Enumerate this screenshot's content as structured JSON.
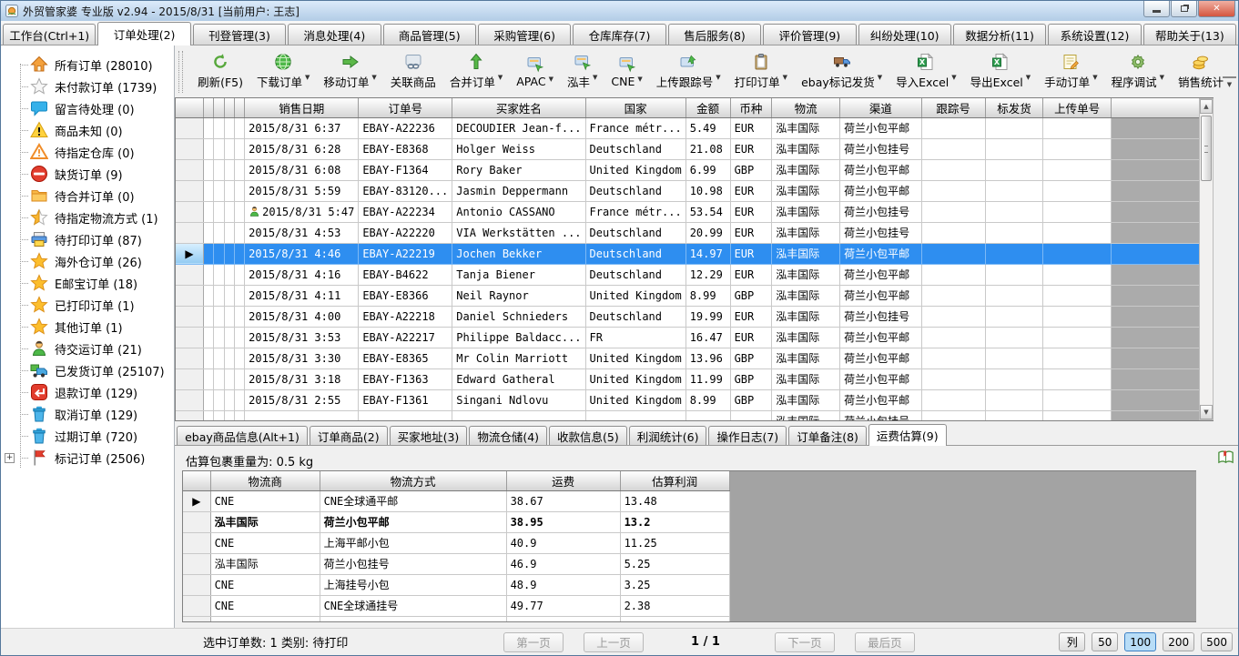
{
  "window": {
    "title": "外贸管家婆 专业版 v2.94 - 2015/8/31 [当前用户: 王志]",
    "app_icon": "app-icon",
    "controls": {
      "minimize": "minimize-button",
      "maximize": "maximize-button",
      "close": "close-button"
    }
  },
  "menu_tabs": [
    {
      "label": "工作台(Ctrl+1)",
      "active": false
    },
    {
      "label": "订单处理(2)",
      "active": true
    },
    {
      "label": "刊登管理(3)",
      "active": false
    },
    {
      "label": "消息处理(4)",
      "active": false
    },
    {
      "label": "商品管理(5)",
      "active": false
    },
    {
      "label": "采购管理(6)",
      "active": false
    },
    {
      "label": "仓库库存(7)",
      "active": false
    },
    {
      "label": "售后服务(8)",
      "active": false
    },
    {
      "label": "评价管理(9)",
      "active": false
    },
    {
      "label": "纠纷处理(10)",
      "active": false
    },
    {
      "label": "数据分析(11)",
      "active": false
    },
    {
      "label": "系统设置(12)",
      "active": false
    },
    {
      "label": "帮助关于(13)",
      "active": false
    }
  ],
  "sidebar": {
    "items": [
      {
        "icon": "home-icon",
        "label": "所有订单 (28010)"
      },
      {
        "icon": "star-gray-icon",
        "label": "未付款订单 (1739)"
      },
      {
        "icon": "message-icon",
        "label": "留言待处理 (0)"
      },
      {
        "icon": "warning-icon",
        "label": "商品未知 (0)"
      },
      {
        "icon": "warning-outline-icon",
        "label": "待指定仓库 (0)"
      },
      {
        "icon": "no-entry-icon",
        "label": "缺货订单 (9)"
      },
      {
        "icon": "folder-icon",
        "label": "待合并订单 (0)"
      },
      {
        "icon": "star-half-icon",
        "label": "待指定物流方式 (1)"
      },
      {
        "icon": "printer-icon",
        "label": "待打印订单 (87)"
      },
      {
        "icon": "star-icon",
        "label": "海外仓订单 (26)"
      },
      {
        "icon": "star-icon",
        "label": "E邮宝订单 (18)"
      },
      {
        "icon": "star-icon",
        "label": "已打印订单 (1)"
      },
      {
        "icon": "star-icon",
        "label": "其他订单 (1)"
      },
      {
        "icon": "person-icon",
        "label": "待交运订单 (21)"
      },
      {
        "icon": "truck-icon",
        "label": "已发货订单 (25107)"
      },
      {
        "icon": "refund-icon",
        "label": "退款订单 (129)"
      },
      {
        "icon": "trash-icon",
        "label": "取消订单 (129)"
      },
      {
        "icon": "trash-icon",
        "label": "过期订单 (720)"
      },
      {
        "icon": "flag-icon",
        "label": "标记订单 (2506)",
        "expandable": true
      }
    ]
  },
  "toolbar": {
    "buttons": [
      {
        "icon": "refresh-icon",
        "label": "刷新(F5)",
        "dropdown": false
      },
      {
        "icon": "globe-icon",
        "label": "下载订单",
        "dropdown": true
      },
      {
        "icon": "arrow-right-icon",
        "label": "移动订单",
        "dropdown": true
      },
      {
        "icon": "link-icon",
        "label": "关联商品",
        "dropdown": false
      },
      {
        "icon": "merge-icon",
        "label": "合并订单",
        "dropdown": true
      },
      {
        "icon": "card-icon",
        "label": "APAC",
        "dropdown": true
      },
      {
        "icon": "card-icon",
        "label": "泓丰",
        "dropdown": true
      },
      {
        "icon": "card-icon",
        "label": "CNE",
        "dropdown": true
      },
      {
        "icon": "upload-icon",
        "label": "上传跟踪号",
        "dropdown": true
      },
      {
        "icon": "print-icon",
        "label": "打印订单",
        "dropdown": true
      },
      {
        "icon": "ship-icon",
        "label": "ebay标记发货",
        "dropdown": true
      },
      {
        "icon": "excel-icon",
        "label": "导入Excel",
        "dropdown": true
      },
      {
        "icon": "excel-icon",
        "label": "导出Excel",
        "dropdown": true
      },
      {
        "icon": "note-icon",
        "label": "手动订单",
        "dropdown": true
      },
      {
        "icon": "gear-icon",
        "label": "程序调试",
        "dropdown": true
      },
      {
        "icon": "coins-icon",
        "label": "销售统计",
        "dropdown": false
      }
    ]
  },
  "orders_table": {
    "columns": [
      "销售日期",
      "订单号",
      "买家姓名",
      "国家",
      "金额",
      "币种",
      "物流",
      "渠道",
      "跟踪号",
      "标发货",
      "上传单号"
    ],
    "rows": [
      {
        "date": "2015/8/31 6:37",
        "order_no": "EBAY-A22236",
        "buyer": "DECOUDIER Jean-f...",
        "country": "France métr...",
        "amount": "5.49",
        "currency": "EUR",
        "logistics": "泓丰国际",
        "channel": "荷兰小包平邮",
        "tracking": "",
        "shipped": "",
        "upload_no": ""
      },
      {
        "date": "2015/8/31 6:28",
        "order_no": "EBAY-E8368",
        "buyer": "Holger Weiss",
        "country": "Deutschland",
        "amount": "21.08",
        "currency": "EUR",
        "logistics": "泓丰国际",
        "channel": "荷兰小包挂号",
        "tracking": "",
        "shipped": "",
        "upload_no": ""
      },
      {
        "date": "2015/8/31 6:08",
        "order_no": "EBAY-F1364",
        "buyer": "Rory Baker",
        "country": "United Kingdom",
        "amount": "6.99",
        "currency": "GBP",
        "logistics": "泓丰国际",
        "channel": "荷兰小包平邮",
        "tracking": "",
        "shipped": "",
        "upload_no": ""
      },
      {
        "date": "2015/8/31 5:59",
        "order_no": "EBAY-83120...",
        "buyer": "Jasmin Deppermann",
        "country": "Deutschland",
        "amount": "10.98",
        "currency": "EUR",
        "logistics": "泓丰国际",
        "channel": "荷兰小包平邮",
        "tracking": "",
        "shipped": "",
        "upload_no": ""
      },
      {
        "date": "2015/8/31 5:47",
        "order_no": "EBAY-A22234",
        "buyer": "Antonio CASSANO",
        "country": "France métr...",
        "amount": "53.54",
        "currency": "EUR",
        "logistics": "泓丰国际",
        "channel": "荷兰小包挂号",
        "tracking": "",
        "shipped": "",
        "upload_no": "",
        "person_icon": true
      },
      {
        "date": "2015/8/31 4:53",
        "order_no": "EBAY-A22220",
        "buyer": "VIA Werkstätten ...",
        "country": "Deutschland",
        "amount": "20.99",
        "currency": "EUR",
        "logistics": "泓丰国际",
        "channel": "荷兰小包挂号",
        "tracking": "",
        "shipped": "",
        "upload_no": ""
      },
      {
        "date": "2015/8/31 4:46",
        "order_no": "EBAY-A22219",
        "buyer": "Jochen Bekker",
        "country": "Deutschland",
        "amount": "14.97",
        "currency": "EUR",
        "logistics": "泓丰国际",
        "channel": "荷兰小包平邮",
        "tracking": "",
        "shipped": "",
        "upload_no": "",
        "selected": true
      },
      {
        "date": "2015/8/31 4:16",
        "order_no": "EBAY-B4622",
        "buyer": "Tanja Biener",
        "country": "Deutschland",
        "amount": "12.29",
        "currency": "EUR",
        "logistics": "泓丰国际",
        "channel": "荷兰小包平邮",
        "tracking": "",
        "shipped": "",
        "upload_no": ""
      },
      {
        "date": "2015/8/31 4:11",
        "order_no": "EBAY-E8366",
        "buyer": "Neil Raynor",
        "country": "United Kingdom",
        "amount": "8.99",
        "currency": "GBP",
        "logistics": "泓丰国际",
        "channel": "荷兰小包平邮",
        "tracking": "",
        "shipped": "",
        "upload_no": ""
      },
      {
        "date": "2015/8/31 4:00",
        "order_no": "EBAY-A22218",
        "buyer": "Daniel Schnieders",
        "country": "Deutschland",
        "amount": "19.99",
        "currency": "EUR",
        "logistics": "泓丰国际",
        "channel": "荷兰小包挂号",
        "tracking": "",
        "shipped": "",
        "upload_no": ""
      },
      {
        "date": "2015/8/31 3:53",
        "order_no": "EBAY-A22217",
        "buyer": "Philippe Baldacc...",
        "country": "FR",
        "amount": "16.47",
        "currency": "EUR",
        "logistics": "泓丰国际",
        "channel": "荷兰小包平邮",
        "tracking": "",
        "shipped": "",
        "upload_no": ""
      },
      {
        "date": "2015/8/31 3:30",
        "order_no": "EBAY-E8365",
        "buyer": "Mr Colin Marriott",
        "country": "United Kingdom",
        "amount": "13.96",
        "currency": "GBP",
        "logistics": "泓丰国际",
        "channel": "荷兰小包平邮",
        "tracking": "",
        "shipped": "",
        "upload_no": ""
      },
      {
        "date": "2015/8/31 3:18",
        "order_no": "EBAY-F1363",
        "buyer": "Edward Gatheral",
        "country": "United Kingdom",
        "amount": "11.99",
        "currency": "GBP",
        "logistics": "泓丰国际",
        "channel": "荷兰小包平邮",
        "tracking": "",
        "shipped": "",
        "upload_no": ""
      },
      {
        "date": "2015/8/31 2:55",
        "order_no": "EBAY-F1361",
        "buyer": "Singani Ndlovu",
        "country": "United Kingdom",
        "amount": "8.99",
        "currency": "GBP",
        "logistics": "泓丰国际",
        "channel": "荷兰小包平邮",
        "tracking": "",
        "shipped": "",
        "upload_no": ""
      },
      {
        "date": "",
        "order_no": "",
        "buyer": "",
        "country": "",
        "amount": "",
        "currency": "",
        "logistics": "泓丰国际",
        "channel": "荷兰小包挂号",
        "tracking": "",
        "shipped": "",
        "upload_no": "",
        "partial": true
      }
    ]
  },
  "detail_tabs": [
    {
      "label": "ebay商品信息(Alt+1)",
      "active": false
    },
    {
      "label": "订单商品(2)",
      "active": false
    },
    {
      "label": "买家地址(3)",
      "active": false
    },
    {
      "label": "物流仓储(4)",
      "active": false
    },
    {
      "label": "收款信息(5)",
      "active": false
    },
    {
      "label": "利润统计(6)",
      "active": false
    },
    {
      "label": "操作日志(7)",
      "active": false
    },
    {
      "label": "订单备注(8)",
      "active": false
    },
    {
      "label": "运费估算(9)",
      "active": true
    }
  ],
  "freight_panel": {
    "weight_label": "估算包裹重量为: 0.5 kg",
    "corner_icon": "book-icon",
    "columns": [
      "物流商",
      "物流方式",
      "运费",
      "估算利润"
    ],
    "rows": [
      {
        "provider": "CNE",
        "method": "CNE全球通平邮",
        "fee": "38.67",
        "profit": "13.48",
        "selected": true
      },
      {
        "provider": "泓丰国际",
        "method": "荷兰小包平邮",
        "fee": "38.95",
        "profit": "13.2",
        "bold": true
      },
      {
        "provider": "CNE",
        "method": "上海平邮小包",
        "fee": "40.9",
        "profit": "11.25"
      },
      {
        "provider": "泓丰国际",
        "method": "荷兰小包挂号",
        "fee": "46.9",
        "profit": "5.25"
      },
      {
        "provider": "CNE",
        "method": "上海挂号小包",
        "fee": "48.9",
        "profit": "3.25"
      },
      {
        "provider": "CNE",
        "method": "CNE全球通挂号",
        "fee": "49.77",
        "profit": "2.38"
      },
      {
        "provider": "",
        "method": "",
        "fee": "",
        "profit": "",
        "partial": true
      }
    ]
  },
  "status_bar": {
    "selection_info": "选中订单数: 1  类别: 待打印",
    "pagination": {
      "first": "第一页",
      "prev": "上一页",
      "indicator": "1 / 1",
      "next": "下一页",
      "last": "最后页"
    },
    "page_size": {
      "column_button": "列",
      "options": [
        "50",
        "100",
        "200",
        "500"
      ],
      "selected": "100"
    }
  },
  "colors": {
    "selected_row": "#2e8ef0",
    "titlebar": "#b2cce6",
    "active_page_size": "#b8ddf7",
    "grid_filler_gray": "#ababab"
  }
}
